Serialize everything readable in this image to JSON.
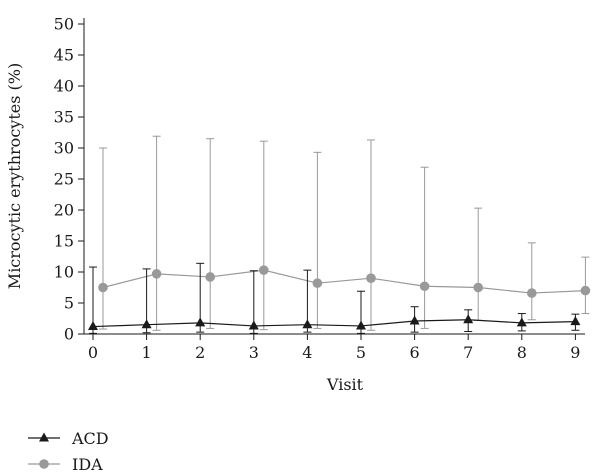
{
  "chart_data": {
    "type": "line",
    "xlabel": "Visit",
    "ylabel": "Microcytic erythrocytes (%)",
    "x": [
      0,
      1,
      2,
      3,
      4,
      5,
      6,
      7,
      8,
      9
    ],
    "ylim": [
      0,
      50
    ],
    "yticks": [
      0,
      5,
      10,
      15,
      20,
      25,
      30,
      35,
      40,
      45,
      50
    ],
    "xlim": [
      0,
      9
    ],
    "grid": false,
    "legend_position": "bottom-left",
    "series": [
      {
        "name": "ACD",
        "marker": "triangle",
        "color": "#1a1a1a",
        "values": [
          1.2,
          1.5,
          1.8,
          1.3,
          1.5,
          1.3,
          2.1,
          2.3,
          1.8,
          2.0
        ],
        "error_low": [
          0.1,
          0.2,
          0.3,
          0.1,
          0.3,
          0.1,
          0.3,
          0.4,
          0.5,
          0.6
        ],
        "error_high": [
          10.8,
          10.5,
          11.4,
          10.2,
          10.3,
          6.9,
          4.4,
          3.9,
          3.3,
          3.2
        ]
      },
      {
        "name": "IDA",
        "marker": "circle",
        "color": "#999999",
        "values": [
          7.5,
          9.7,
          9.2,
          10.3,
          8.2,
          9.0,
          7.7,
          7.5,
          6.6,
          7.0
        ],
        "error_low": [
          0.8,
          0.6,
          0.9,
          0.7,
          0.9,
          0.6,
          0.9,
          2.2,
          2.3,
          3.3
        ],
        "error_high": [
          30.0,
          31.9,
          31.5,
          31.1,
          29.3,
          31.3,
          26.9,
          20.3,
          14.7,
          12.4
        ]
      }
    ]
  }
}
